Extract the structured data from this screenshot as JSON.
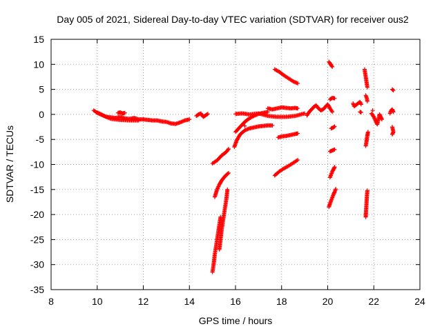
{
  "chart_data": {
    "type": "scatter",
    "title": "Day 005 of 2021, Sidereal Day-to-day VTEC variation (SDTVAR) for receiver ous2",
    "xlabel": "GPS time / hours",
    "ylabel": "SDTVAR / TECUs",
    "xlim": [
      8,
      24
    ],
    "ylim": [
      -35,
      15
    ],
    "xticks": [
      8,
      10,
      12,
      14,
      16,
      18,
      20,
      22,
      24
    ],
    "yticks": [
      -35,
      -30,
      -25,
      -20,
      -15,
      -10,
      -5,
      0,
      5,
      10,
      15
    ],
    "grid": true,
    "marker": "plus",
    "color": "#ff0000",
    "segments": [
      {
        "name": "band-10-12",
        "x": [
          9.85,
          10.0,
          10.2,
          10.4,
          10.6,
          10.8,
          11.0,
          11.2,
          11.4,
          11.6,
          11.8,
          12.0
        ],
        "y": [
          0.8,
          0.3,
          -0.1,
          -0.5,
          -0.6,
          -0.7,
          -0.5,
          -0.8,
          -0.9,
          -0.7,
          -1.0,
          -1.0
        ]
      },
      {
        "name": "band-10-lower",
        "x": [
          10.0,
          10.3,
          10.6,
          11.0,
          11.4,
          11.8
        ],
        "y": [
          0.4,
          -0.3,
          -0.9,
          -1.1,
          -1.2,
          -1.2
        ]
      },
      {
        "name": "band-11-bump",
        "x": [
          10.9,
          11.0,
          11.1,
          11.2
        ],
        "y": [
          0.3,
          0.4,
          0.2,
          0.3
        ]
      },
      {
        "name": "band-12-14",
        "x": [
          12.0,
          12.2,
          12.4,
          12.6,
          12.8,
          13.0,
          13.2,
          13.4,
          13.6,
          13.8,
          14.0
        ],
        "y": [
          -1.0,
          -1.1,
          -1.2,
          -1.2,
          -1.4,
          -1.5,
          -1.8,
          -1.9,
          -1.6,
          -1.2,
          -1.0
        ]
      },
      {
        "name": "band-14-15",
        "x": [
          14.3,
          14.4,
          14.5,
          14.6,
          14.7,
          14.8
        ],
        "y": [
          -0.3,
          0.0,
          0.2,
          -0.5,
          -0.2,
          0.1
        ]
      },
      {
        "name": "spike-15-left",
        "x": [
          15.0,
          15.05,
          15.1,
          15.15,
          15.2,
          15.25,
          15.3,
          15.35
        ],
        "y": [
          -31.5,
          -30.0,
          -28.0,
          -26.5,
          -25.0,
          -23.5,
          -22.0,
          -20.5
        ]
      },
      {
        "name": "spike-15-right",
        "x": [
          15.3,
          15.35,
          15.4,
          15.45,
          15.5,
          15.55,
          15.6,
          15.65
        ],
        "y": [
          -27.0,
          -25.0,
          -23.0,
          -21.5,
          -20.0,
          -18.5,
          -17.0,
          -15.0
        ]
      },
      {
        "name": "arc-15-16",
        "x": [
          15.1,
          15.2,
          15.3,
          15.4,
          15.5,
          15.6,
          15.7
        ],
        "y": [
          -16.5,
          -15.0,
          -14.0,
          -13.2,
          -12.6,
          -12.1,
          -11.7
        ]
      },
      {
        "name": "arc-15-upper",
        "x": [
          15.0,
          15.2,
          15.4,
          15.6,
          15.7
        ],
        "y": [
          -9.8,
          -9.2,
          -8.2,
          -7.5,
          -6.9
        ]
      },
      {
        "name": "arc-16-17",
        "x": [
          15.95,
          16.05,
          16.2,
          16.4,
          16.6,
          16.8,
          17.0,
          17.2,
          17.4,
          17.6
        ],
        "y": [
          -6.5,
          -5.2,
          -4.0,
          -3.2,
          -2.8,
          -2.6,
          -2.4,
          -2.3,
          -2.2,
          -2.2
        ]
      },
      {
        "name": "arc-16-mid",
        "x": [
          16.0,
          16.2,
          16.4,
          16.6,
          16.8,
          17.0,
          17.2,
          17.4
        ],
        "y": [
          -3.5,
          -2.5,
          -1.5,
          -0.8,
          -0.3,
          0.1,
          0.3,
          0.5
        ]
      },
      {
        "name": "band-16-19",
        "x": [
          16.0,
          16.3,
          16.6,
          17.0,
          17.4,
          17.8,
          18.2,
          18.6,
          19.0
        ],
        "y": [
          0.1,
          0.2,
          0.0,
          0.2,
          -0.3,
          -0.5,
          -0.5,
          -0.3,
          0.2
        ]
      },
      {
        "name": "arc-17-18",
        "x": [
          17.4,
          17.6,
          17.8,
          18.0,
          18.2,
          18.4,
          18.6,
          18.7
        ],
        "y": [
          1.2,
          1.0,
          1.2,
          1.4,
          1.3,
          1.2,
          1.3,
          1.2
        ]
      },
      {
        "name": "line-18-down",
        "x": [
          17.7,
          17.9,
          18.1,
          18.3,
          18.5,
          18.7
        ],
        "y": [
          9.0,
          8.5,
          7.8,
          7.2,
          6.6,
          6.2
        ]
      },
      {
        "name": "line-18-mid",
        "x": [
          17.85,
          18.0,
          18.2,
          18.4,
          18.6,
          18.7
        ],
        "y": [
          -4.6,
          -4.4,
          -4.3,
          -4.1,
          -3.9,
          -3.8
        ]
      },
      {
        "name": "line-18-low",
        "x": [
          17.7,
          17.9,
          18.1,
          18.3,
          18.5,
          18.7
        ],
        "y": [
          -12.2,
          -11.4,
          -10.8,
          -10.3,
          -9.7,
          -9.1
        ]
      },
      {
        "name": "cluster-19-20",
        "x": [
          19.1,
          19.2,
          19.3,
          19.4,
          19.5,
          19.6,
          19.7,
          19.8,
          19.9,
          20.0,
          20.1,
          20.2
        ],
        "y": [
          -0.2,
          0.5,
          1.0,
          1.5,
          1.8,
          1.2,
          0.8,
          1.0,
          1.5,
          2.0,
          1.2,
          0.5
        ]
      },
      {
        "name": "line-20-top",
        "x": [
          20.05,
          20.1,
          20.15,
          20.2
        ],
        "y": [
          10.5,
          10.2,
          9.8,
          9.5
        ]
      },
      {
        "name": "points-20-3",
        "x": [
          20.1,
          20.2,
          20.3
        ],
        "y": [
          3.0,
          3.3,
          3.2
        ]
      },
      {
        "name": "line-20-m3",
        "x": [
          20.15,
          20.25,
          20.3
        ],
        "y": [
          -2.8,
          -2.6,
          -2.4
        ]
      },
      {
        "name": "line-20-m7",
        "x": [
          20.1,
          20.2,
          20.3
        ],
        "y": [
          -7.4,
          -7.2,
          -7.0
        ]
      },
      {
        "name": "line-20-m12",
        "x": [
          20.1,
          20.15,
          20.2,
          20.25,
          20.3
        ],
        "y": [
          -12.6,
          -12.0,
          -11.4,
          -11.0,
          -10.5
        ]
      },
      {
        "name": "line-20-m17",
        "x": [
          20.05,
          20.1,
          20.15,
          20.2,
          20.25,
          20.3,
          20.35
        ],
        "y": [
          -18.5,
          -17.8,
          -17.2,
          -16.6,
          -16.0,
          -15.5,
          -14.9
        ]
      },
      {
        "name": "points-21",
        "x": [
          21.1,
          21.15,
          21.4,
          21.45
        ],
        "y": [
          2.2,
          1.6,
          2.5,
          2.0
        ]
      },
      {
        "name": "points-21-dash",
        "x": [
          21.4,
          21.45
        ],
        "y": [
          0.5,
          0.4
        ]
      },
      {
        "name": "line-21-7-top",
        "x": [
          21.6,
          21.62,
          21.64,
          21.66,
          21.68,
          21.7,
          21.72
        ],
        "y": [
          9.0,
          8.4,
          7.8,
          7.2,
          6.6,
          6.0,
          5.4
        ]
      },
      {
        "name": "points-21-7",
        "x": [
          21.65,
          21.7,
          21.72
        ],
        "y": [
          3.8,
          3.2,
          2.6
        ]
      },
      {
        "name": "line-21-7-mid",
        "x": [
          21.65,
          21.68,
          21.7,
          21.72,
          21.75
        ],
        "y": [
          -6.3,
          -5.5,
          -4.8,
          -4.2,
          -3.5
        ]
      },
      {
        "name": "line-21-7-low",
        "x": [
          21.65,
          21.66,
          21.67,
          21.68,
          21.69,
          21.7,
          21.72
        ],
        "y": [
          -20.5,
          -19.6,
          -18.8,
          -18.0,
          -17.2,
          -16.4,
          -15.2
        ]
      },
      {
        "name": "cluster-22",
        "x": [
          21.9,
          22.0,
          22.1,
          22.15,
          22.2,
          22.25,
          22.3,
          22.35
        ],
        "y": [
          0.2,
          -0.5,
          -1.5,
          -2.0,
          -1.0,
          0.0,
          -0.5,
          -1.0
        ]
      },
      {
        "name": "point-22-upper",
        "x": [
          21.95
        ],
        "y": [
          0.8
        ]
      },
      {
        "name": "points-22-8",
        "x": [
          22.7,
          22.75,
          22.8,
          22.85
        ],
        "y": [
          0.2,
          0.8,
          1.0,
          0.5
        ]
      },
      {
        "name": "point-22-8-top",
        "x": [
          22.8,
          22.85
        ],
        "y": [
          5.0,
          4.8
        ]
      },
      {
        "name": "points-22-8-low",
        "x": [
          22.8,
          22.85,
          22.8
        ],
        "y": [
          -2.5,
          -3.5,
          -4.0
        ]
      },
      {
        "name": "isolated-16-4",
        "x": [
          16.4
        ],
        "y": [
          -2.3
        ]
      }
    ]
  }
}
